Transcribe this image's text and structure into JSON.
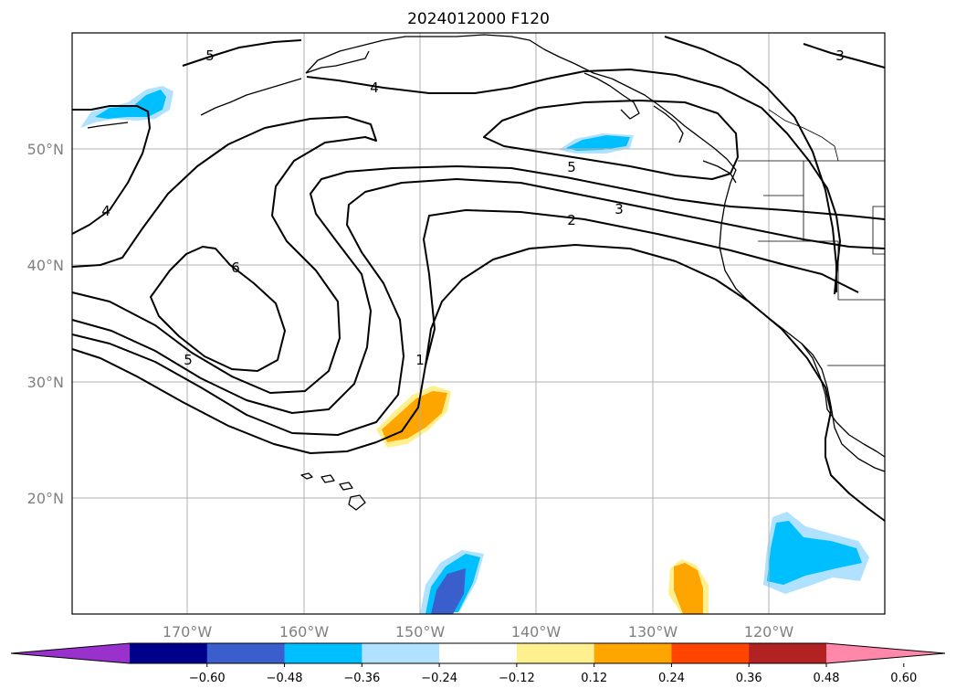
{
  "title": "2024012000 F120",
  "lat_labels": [
    "50°N",
    "40°N",
    "30°N",
    "20°N"
  ],
  "lon_labels": [
    "170°W",
    "160°W",
    "150°W",
    "140°W",
    "130°W",
    "120°W"
  ],
  "contour_labels": [
    {
      "id": "c5-top",
      "text": "5"
    },
    {
      "id": "c4-top",
      "text": "4"
    },
    {
      "id": "c3-right",
      "text": "3"
    },
    {
      "id": "c4-left",
      "text": "4"
    },
    {
      "id": "c6-center",
      "text": "6"
    },
    {
      "id": "c5-left",
      "text": "5"
    },
    {
      "id": "c5-mid",
      "text": "5"
    },
    {
      "id": "c3-mid",
      "text": "3"
    },
    {
      "id": "c2-mid",
      "text": "2"
    },
    {
      "id": "c1-mid",
      "text": "1"
    }
  ],
  "colorbar": {
    "colors": [
      "#9932cc",
      "#00008b",
      "#3a5fcd",
      "#00bfff",
      "#b0e2ff",
      "#ffffff",
      "#fff08f",
      "#ffa500",
      "#ff4500",
      "#b22222",
      "#ff88aa"
    ],
    "tick_labels": [
      "−0.60",
      "−0.48",
      "−0.36",
      "−0.24",
      "−0.12",
      "0.12",
      "0.24",
      "0.36",
      "0.48",
      "0.60"
    ]
  }
}
